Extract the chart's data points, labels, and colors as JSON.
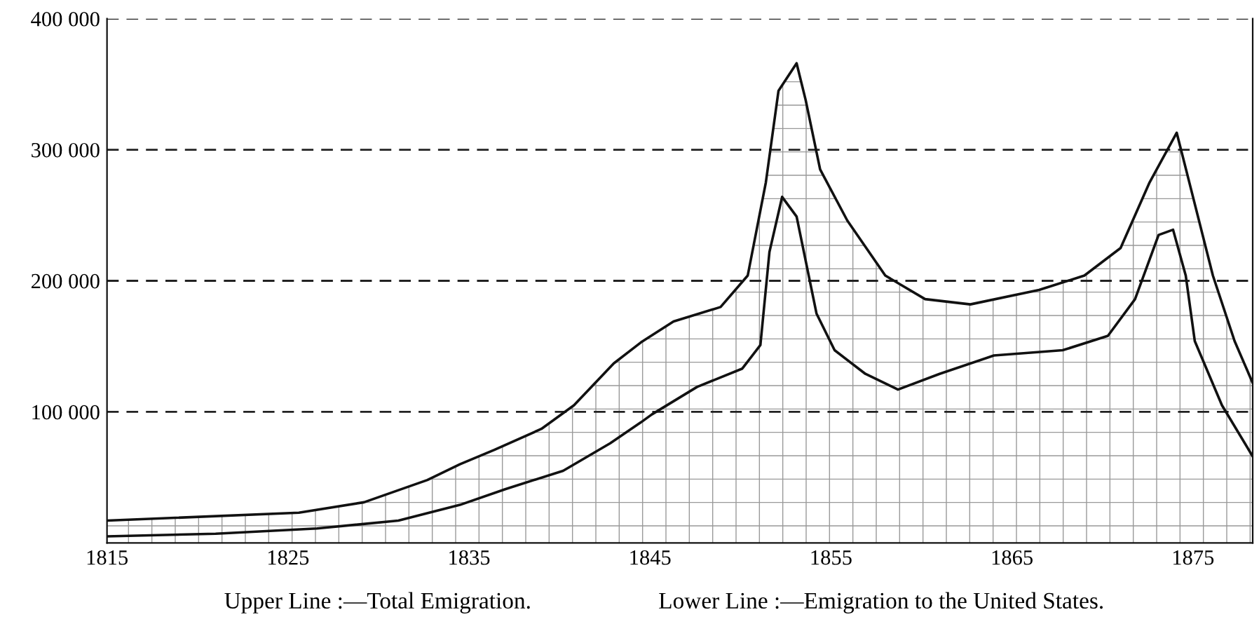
{
  "chart_data": {
    "type": "line",
    "series": [
      {
        "type": "area",
        "color": "#111111",
        "x": [
          1815,
          1825.6,
          1829.2,
          1832.7,
          1834.5,
          1836.4,
          1839,
          1840.8,
          1843,
          1844.5,
          1846.3,
          1848.9,
          1850.4,
          1851.4,
          1852.1,
          1853.1,
          1853.6,
          1854.4,
          1855.9,
          1858,
          1860.2,
          1862.7,
          1866.5,
          1869,
          1871,
          1872.6,
          1874.1,
          1874.8,
          1876.1,
          1877.3,
          1878.3
        ],
        "values": [
          17000,
          23000,
          31000,
          48000,
          60000,
          71000,
          87000,
          105000,
          137000,
          153000,
          169000,
          180000,
          204000,
          275000,
          345000,
          366000,
          338000,
          285000,
          246000,
          204000,
          186000,
          182000,
          193000,
          204000,
          225000,
          275000,
          313000,
          275000,
          204000,
          154000,
          122000
        ]
      },
      {
        "color": "#111111",
        "x": [
          1815,
          1821,
          1826.6,
          1831.1,
          1834.5,
          1837,
          1840.2,
          1842.8,
          1844.5,
          1845.1,
          1847.6,
          1850.1,
          1851.1,
          1851.6,
          1852.3,
          1853.1,
          1854.2,
          1855.2,
          1856.9,
          1858.7,
          1861,
          1864,
          1867.8,
          1870.3,
          1871.8,
          1873.1,
          1873.9,
          1874.6,
          1875.1,
          1876.6,
          1878.3
        ],
        "values": [
          5000,
          7000,
          11000,
          17000,
          29000,
          41000,
          55000,
          76000,
          92000,
          98000,
          119000,
          133000,
          151000,
          222000,
          264000,
          249000,
          175000,
          147000,
          129000,
          117000,
          129000,
          143000,
          147000,
          158000,
          186000,
          235000,
          239000,
          204000,
          154000,
          105000,
          66000
        ]
      }
    ],
    "xlim": [
      1815,
      1878.3
    ],
    "xticks": [
      1815,
      1825,
      1835,
      1845,
      1855,
      1865,
      1875
    ],
    "ylim": [
      0,
      400000
    ],
    "yticks": [
      {
        "value": 100000,
        "label": "100 000"
      },
      {
        "value": 200000,
        "label": "200 000"
      },
      {
        "value": 300000,
        "label": "300 000"
      },
      {
        "value": 400000,
        "label": "400 000"
      }
    ],
    "grid": "y",
    "line_style": "solid",
    "marker": "none",
    "legend": false,
    "annotations": [
      "Upper Line :—Total Emigration.",
      "Lower Line :—Emigration to the United States."
    ]
  }
}
